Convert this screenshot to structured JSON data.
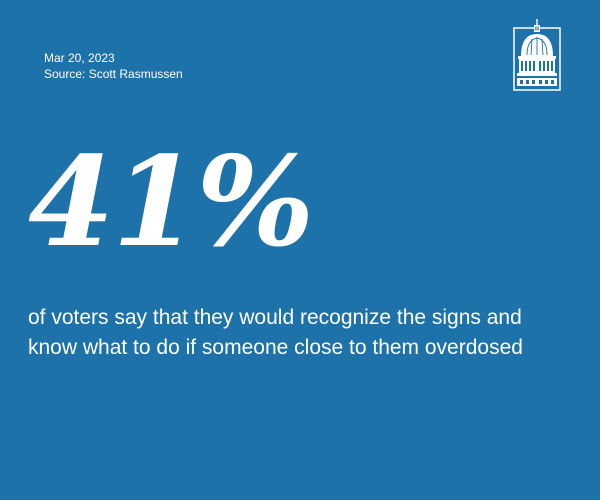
{
  "card": {
    "date": "Mar 20, 2023",
    "source": "Source: Scott Rasmussen",
    "statistic": "41%",
    "caption": "of voters say that they would recognize the signs and know what to do if someone close to them overdosed",
    "logo_icon": "capitol-dome-icon",
    "colors": {
      "background": "#1d72aa",
      "text": "#ffffff"
    }
  }
}
